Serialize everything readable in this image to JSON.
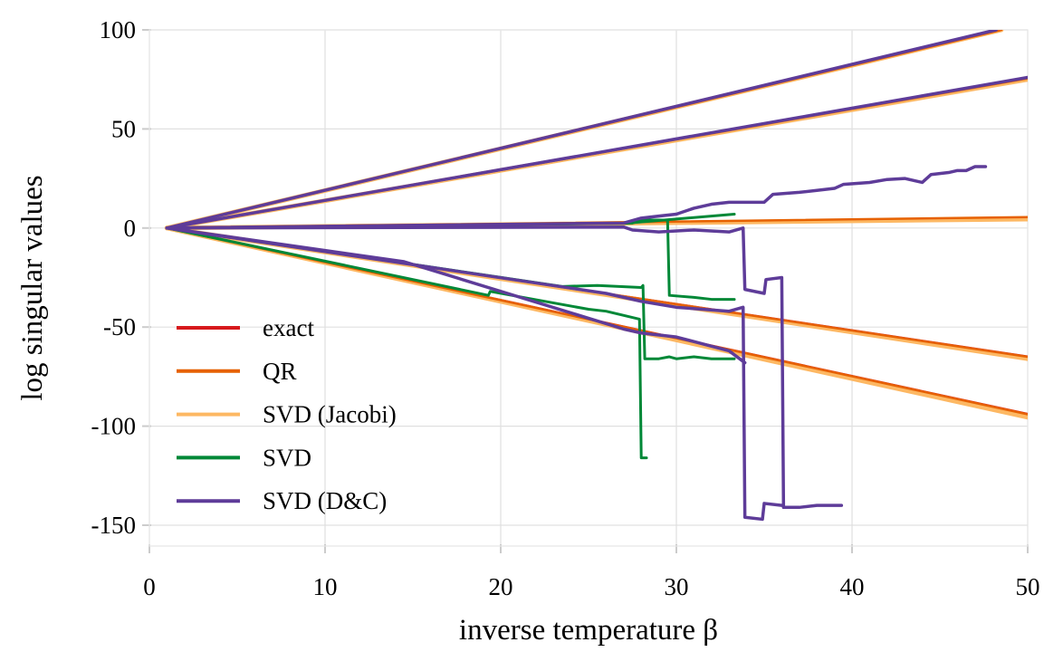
{
  "chart_data": {
    "type": "line",
    "xlabel": "inverse temperature β",
    "ylabel": "log singular values",
    "xlim": [
      0,
      50
    ],
    "ylim": [
      -160,
      100
    ],
    "xticks": [
      0,
      10,
      20,
      30,
      40,
      50
    ],
    "yticks": [
      100,
      50,
      0,
      -50,
      -100,
      -150
    ],
    "ytick_labels": [
      "100",
      "50",
      "0",
      "-50",
      "-100",
      "-150"
    ],
    "grid": true,
    "legend_position": "lower-left",
    "series": [
      {
        "name": "exact",
        "color": "#d7191c",
        "width": 3,
        "lines": [
          [
            [
              1,
              0
            ],
            [
              48.5,
              100
            ]
          ],
          [
            [
              1,
              0
            ],
            [
              50,
              75.5
            ]
          ],
          [
            [
              1,
              0
            ],
            [
              50,
              5
            ]
          ],
          [
            [
              1,
              0
            ],
            [
              50,
              -65
            ]
          ],
          [
            [
              1,
              0
            ],
            [
              50,
              -94
            ]
          ]
        ]
      },
      {
        "name": "SVD (Jacobi)",
        "color": "#fdb863",
        "width": 5,
        "lines": [
          [
            [
              1,
              0
            ],
            [
              48.5,
              100
            ]
          ],
          [
            [
              1,
              0
            ],
            [
              50,
              75
            ]
          ],
          [
            [
              1,
              0
            ],
            [
              50,
              4.5
            ]
          ],
          [
            [
              1,
              0
            ],
            [
              50,
              -66
            ]
          ],
          [
            [
              1,
              0
            ],
            [
              50,
              -95.5
            ]
          ]
        ]
      },
      {
        "name": "QR",
        "color": "#e66101",
        "width": 2.5,
        "lines": [
          [
            [
              1,
              0
            ],
            [
              48.5,
              100
            ]
          ],
          [
            [
              1,
              0
            ],
            [
              50,
              75.5
            ]
          ],
          [
            [
              1,
              0
            ],
            [
              50,
              5.5
            ]
          ],
          [
            [
              1,
              0
            ],
            [
              50,
              -65
            ]
          ],
          [
            [
              1,
              0
            ],
            [
              50,
              -94
            ]
          ]
        ]
      },
      {
        "name": "SVD",
        "color": "#008837",
        "width": 3,
        "lines": [
          [
            [
              1,
              0
            ],
            [
              27,
              2.3
            ],
            [
              33.3,
              7
            ]
          ],
          [
            [
              1,
              0
            ],
            [
              27.5,
              2.5
            ],
            [
              28,
              4
            ],
            [
              29.5,
              4
            ],
            [
              29.6,
              -34
            ],
            [
              31,
              -35
            ],
            [
              32,
              -36
            ],
            [
              33.3,
              -36
            ]
          ],
          [
            [
              1,
              0
            ],
            [
              23.5,
              -29.5
            ],
            [
              25.5,
              -29
            ],
            [
              28,
              -30
            ],
            [
              28.1,
              -29
            ],
            [
              28.2,
              -66
            ],
            [
              29,
              -66
            ],
            [
              29.6,
              -65
            ],
            [
              30,
              -66
            ],
            [
              31,
              -65
            ],
            [
              32,
              -66
            ],
            [
              33.3,
              -66
            ]
          ],
          [
            [
              1,
              0
            ],
            [
              19.3,
              -34
            ],
            [
              19.4,
              -32
            ],
            [
              25,
              -41
            ],
            [
              26,
              -42
            ],
            [
              27.9,
              -46
            ],
            [
              28,
              -116
            ],
            [
              28.3,
              -116
            ]
          ]
        ]
      },
      {
        "name": "SVD (D&C)",
        "color": "#5e3c99",
        "width": 3.5,
        "lines": [
          [
            [
              1,
              0
            ],
            [
              48.2,
              100
            ]
          ],
          [
            [
              1,
              0
            ],
            [
              50,
              76
            ]
          ],
          [
            [
              1,
              0
            ],
            [
              27,
              2.5
            ],
            [
              28,
              5
            ],
            [
              29,
              6
            ],
            [
              30,
              7
            ],
            [
              31,
              10
            ],
            [
              32,
              12
            ],
            [
              33,
              13
            ],
            [
              35,
              13
            ],
            [
              35.5,
              17
            ],
            [
              37,
              18
            ],
            [
              38,
              19
            ],
            [
              39,
              20
            ],
            [
              39.5,
              22
            ],
            [
              41,
              23
            ],
            [
              42,
              24.5
            ],
            [
              43,
              25
            ],
            [
              44,
              23
            ],
            [
              44.5,
              27
            ],
            [
              45.5,
              28
            ],
            [
              46,
              29
            ],
            [
              46.5,
              29
            ],
            [
              47,
              31
            ],
            [
              47.6,
              31
            ]
          ],
          [
            [
              1,
              0
            ],
            [
              27,
              0.5
            ],
            [
              27.5,
              -1
            ],
            [
              29,
              -2
            ],
            [
              31,
              -1
            ],
            [
              33,
              -2
            ],
            [
              33.8,
              0
            ],
            [
              33.9,
              -31
            ],
            [
              35,
              -33
            ],
            [
              35.1,
              -26
            ],
            [
              36,
              -25
            ],
            [
              36.1,
              -141
            ],
            [
              37,
              -141
            ],
            [
              38,
              -140
            ],
            [
              39.4,
              -140
            ]
          ],
          [
            [
              1,
              0
            ],
            [
              26,
              -33
            ],
            [
              28,
              -37
            ],
            [
              30,
              -40
            ],
            [
              33,
              -42
            ],
            [
              33.8,
              -40
            ],
            [
              33.9,
              -146
            ],
            [
              34.9,
              -147
            ],
            [
              35,
              -139
            ],
            [
              36,
              -140
            ]
          ],
          [
            [
              1,
              0
            ],
            [
              14.5,
              -17
            ],
            [
              27,
              -51
            ],
            [
              28,
              -53
            ],
            [
              30,
              -55
            ],
            [
              33,
              -62
            ],
            [
              33.9,
              -68
            ]
          ]
        ]
      }
    ],
    "legend": [
      {
        "label": "exact",
        "color": "#d7191c"
      },
      {
        "label": "QR",
        "color": "#e66101"
      },
      {
        "label": "SVD (Jacobi)",
        "color": "#fdb863"
      },
      {
        "label": "SVD",
        "color": "#008837"
      },
      {
        "label": "SVD (D&C)",
        "color": "#5e3c99"
      }
    ]
  }
}
